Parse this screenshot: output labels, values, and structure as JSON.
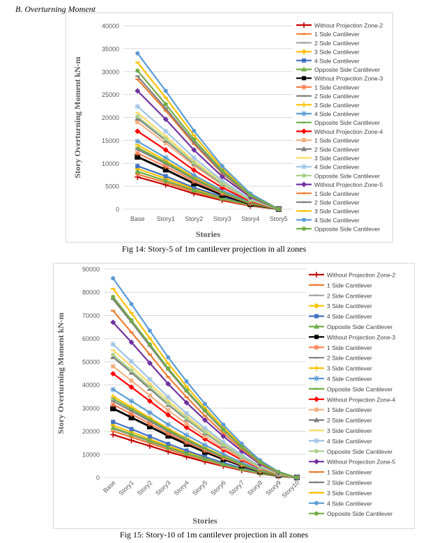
{
  "section_heading": "B.    Overturning Moment",
  "captions": [
    "Fig 14: Story-5 of 1m cantilever projection in all zones",
    "Fig 15: Story-10 of 1m cantilever projection in all zones"
  ],
  "legend_colors": [
    "#c00000",
    "#ed7d31",
    "#a5a5a5",
    "#ffc000",
    "#4472c4",
    "#70ad47",
    "#000000",
    "#ff7f50",
    "#808080",
    "#ffc000",
    "#5b9bd5",
    "#70ad47",
    "#ff0000",
    "#f4b183",
    "#7f7f7f",
    "#ffd966",
    "#9dc3e6",
    "#a9d18e",
    "#7030a0",
    "#ed7d31",
    "#7f7f7f",
    "#ffc000",
    "#5b9bd5",
    "#70ad47"
  ],
  "legend_markers": [
    "plus",
    "dash",
    "dash",
    "diamond",
    "square",
    "triangle",
    "square",
    "star",
    "dash",
    "plus",
    "star",
    "dash",
    "diamond",
    "square",
    "triangle",
    "dash",
    "star",
    "circle",
    "diamond",
    "dash",
    "dash",
    "dash",
    "circle",
    "circle"
  ],
  "chart_data": [
    {
      "type": "line",
      "xlabel": "Stories",
      "ylabel": "Story Overturning Moment kN-m",
      "ylim": [
        0,
        40000
      ],
      "yticks": [
        0,
        5000,
        10000,
        15000,
        20000,
        25000,
        30000,
        35000,
        40000
      ],
      "grid": true,
      "legend": "right",
      "categories": [
        "Base",
        "Story1",
        "Story2",
        "Story3",
        "Story4",
        "Story5"
      ],
      "series": [
        {
          "name": "Without Projection Zone-2",
          "values": [
            7000,
            5300,
            3400,
            1900,
            700,
            0
          ]
        },
        {
          "name": "1 Side Cantilever",
          "values": [
            7600,
            5800,
            3800,
            2100,
            800,
            0
          ]
        },
        {
          "name": "2 Side Cantilever",
          "values": [
            8200,
            6200,
            4100,
            2300,
            900,
            0
          ]
        },
        {
          "name": "3 Side Cantilever",
          "values": [
            8800,
            6700,
            4400,
            2500,
            1000,
            0
          ]
        },
        {
          "name": "4 Side Cantilever",
          "values": [
            9400,
            7200,
            4700,
            2700,
            1100,
            0
          ]
        },
        {
          "name": "Opposite Side Cantilever",
          "values": [
            8200,
            6200,
            4100,
            2300,
            900,
            0
          ]
        },
        {
          "name": "Without Projection Zone-3",
          "values": [
            11400,
            8600,
            5600,
            3100,
            1100,
            0
          ]
        },
        {
          "name": "1 Side Cantilever",
          "values": [
            12200,
            9300,
            6100,
            3400,
            1200,
            0
          ]
        },
        {
          "name": "2 Side Cantilever",
          "values": [
            13000,
            9900,
            6500,
            3600,
            1300,
            0
          ]
        },
        {
          "name": "3 Side Cantilever",
          "values": [
            14000,
            10600,
            7000,
            3900,
            1400,
            0
          ]
        },
        {
          "name": "4 Side Cantilever",
          "values": [
            14800,
            11200,
            7400,
            4100,
            1500,
            0
          ]
        },
        {
          "name": "Opposite Side Cantilever",
          "values": [
            13400,
            10200,
            6700,
            3700,
            1300,
            0
          ]
        },
        {
          "name": "Without Projection Zone-4",
          "values": [
            17000,
            12900,
            8500,
            4700,
            1700,
            0
          ]
        },
        {
          "name": "1 Side Cantilever",
          "values": [
            19000,
            14400,
            9500,
            5300,
            1900,
            0
          ]
        },
        {
          "name": "2 Side Cantilever",
          "values": [
            19800,
            15000,
            9900,
            5500,
            2000,
            0
          ]
        },
        {
          "name": "3 Side Cantilever",
          "values": [
            21000,
            15900,
            10500,
            5800,
            2100,
            0
          ]
        },
        {
          "name": "4 Side Cantilever",
          "values": [
            22400,
            17000,
            11200,
            6200,
            2200,
            0
          ]
        },
        {
          "name": "Opposite Side Cantilever",
          "values": [
            20200,
            15300,
            10100,
            5600,
            2000,
            0
          ]
        },
        {
          "name": "Without Projection Zone-5",
          "values": [
            25800,
            19600,
            12900,
            7100,
            2600,
            0
          ]
        },
        {
          "name": "1 Side Cantilever",
          "values": [
            28300,
            21500,
            14200,
            7800,
            2800,
            0
          ]
        },
        {
          "name": "2 Side Cantilever",
          "values": [
            29000,
            22000,
            14600,
            8000,
            2900,
            0
          ]
        },
        {
          "name": "3 Side Cantilever",
          "values": [
            32000,
            24300,
            16100,
            8900,
            3200,
            0
          ]
        },
        {
          "name": "4 Side Cantilever",
          "values": [
            34000,
            25800,
            17100,
            9400,
            3400,
            0
          ]
        },
        {
          "name": "Opposite Side Cantilever",
          "values": [
            30200,
            22900,
            15200,
            8400,
            3000,
            0
          ]
        }
      ]
    },
    {
      "type": "line",
      "xlabel": "Stories",
      "ylabel": "Story Overturning Moment kN-m",
      "ylim": [
        0,
        90000
      ],
      "yticks": [
        0,
        10000,
        20000,
        30000,
        40000,
        50000,
        60000,
        70000,
        80000,
        90000
      ],
      "grid": true,
      "legend": "right",
      "categories": [
        "Base",
        "Story1",
        "Story2",
        "Story3",
        "Story4",
        "Story5",
        "Story6",
        "Story7",
        "Story8",
        "Story9",
        "Story10"
      ],
      "series": [
        {
          "name": "Without Projection Zone-2",
          "values": [
            18500,
            16000,
            13600,
            11100,
            8900,
            6800,
            4900,
            3100,
            1600,
            500,
            0
          ]
        },
        {
          "name": "1 Side Cantilever",
          "values": [
            20000,
            17400,
            14800,
            12100,
            9700,
            7400,
            5300,
            3400,
            1700,
            600,
            0
          ]
        },
        {
          "name": "2 Side Cantilever",
          "values": [
            21000,
            18300,
            15500,
            12700,
            10200,
            7800,
            5600,
            3600,
            1800,
            600,
            0
          ]
        },
        {
          "name": "3 Side Cantilever",
          "values": [
            22500,
            19600,
            16600,
            13600,
            10900,
            8300,
            6000,
            3800,
            1900,
            700,
            0
          ]
        },
        {
          "name": "4 Side Cantilever",
          "values": [
            24000,
            20900,
            17700,
            14500,
            11600,
            8900,
            6400,
            4100,
            2100,
            700,
            0
          ]
        },
        {
          "name": "Opposite Side Cantilever",
          "values": [
            21500,
            18700,
            15900,
            13000,
            10400,
            8000,
            5700,
            3700,
            1900,
            600,
            0
          ]
        },
        {
          "name": "Without Projection Zone-3",
          "values": [
            29800,
            25900,
            22000,
            18000,
            14400,
            11000,
            7900,
            5100,
            2600,
            900,
            0
          ]
        },
        {
          "name": "1 Side Cantilever",
          "values": [
            31500,
            27400,
            23200,
            19000,
            15200,
            11700,
            8400,
            5400,
            2700,
            900,
            0
          ]
        },
        {
          "name": "2 Side Cantilever",
          "values": [
            33000,
            28700,
            24300,
            19900,
            15900,
            12200,
            8800,
            5600,
            2800,
            1000,
            0
          ]
        },
        {
          "name": "3 Side Cantilever",
          "values": [
            35000,
            30400,
            25800,
            21100,
            16900,
            12900,
            9300,
            6000,
            3000,
            1000,
            0
          ]
        },
        {
          "name": "4 Side Cantilever",
          "values": [
            38000,
            33000,
            28000,
            22900,
            18300,
            14000,
            10100,
            6500,
            3300,
            1100,
            0
          ]
        },
        {
          "name": "Opposite Side Cantilever",
          "values": [
            34000,
            29600,
            25100,
            20500,
            16400,
            12600,
            9000,
            5800,
            2900,
            1000,
            0
          ]
        },
        {
          "name": "Without Projection Zone-4",
          "values": [
            44800,
            39000,
            33000,
            27000,
            21600,
            16600,
            11900,
            7600,
            3900,
            1300,
            0
          ]
        },
        {
          "name": "1 Side Cantilever",
          "values": [
            48000,
            41800,
            35400,
            29000,
            23200,
            17800,
            12800,
            8200,
            4100,
            1400,
            0
          ]
        },
        {
          "name": "2 Side Cantilever",
          "values": [
            52000,
            45300,
            38300,
            31400,
            25100,
            19200,
            13800,
            8900,
            4500,
            1500,
            0
          ]
        },
        {
          "name": "3 Side Cantilever",
          "values": [
            55000,
            47900,
            40500,
            33200,
            26500,
            20300,
            14600,
            9400,
            4700,
            1600,
            0
          ]
        },
        {
          "name": "4 Side Cantilever",
          "values": [
            57500,
            50100,
            42400,
            34700,
            27700,
            21300,
            15300,
            9800,
            4900,
            1700,
            0
          ]
        },
        {
          "name": "Opposite Side Cantilever",
          "values": [
            53000,
            46200,
            39100,
            32000,
            25600,
            19600,
            14100,
            9000,
            4600,
            1500,
            0
          ]
        },
        {
          "name": "Without Projection Zone-5",
          "values": [
            67000,
            58400,
            49400,
            40400,
            32300,
            24800,
            17800,
            11400,
            5800,
            2000,
            0
          ]
        },
        {
          "name": "1 Side Cantilever",
          "values": [
            72000,
            62700,
            53100,
            43400,
            34700,
            26600,
            19100,
            12300,
            6200,
            2100,
            0
          ]
        },
        {
          "name": "2 Side Cantilever",
          "values": [
            77000,
            67100,
            56800,
            46500,
            37100,
            28500,
            20400,
            13100,
            6600,
            2300,
            0
          ]
        },
        {
          "name": "3 Side Cantilever",
          "values": [
            81500,
            71000,
            60100,
            49200,
            39300,
            30100,
            21600,
            13900,
            7000,
            2400,
            0
          ]
        },
        {
          "name": "4 Side Cantilever",
          "values": [
            86000,
            74900,
            63400,
            51900,
            41500,
            31800,
            22800,
            14600,
            7400,
            2500,
            0
          ]
        },
        {
          "name": "Opposite Side Cantilever",
          "values": [
            78000,
            67900,
            57500,
            47100,
            37600,
            28900,
            20700,
            13300,
            6700,
            2300,
            0
          ]
        }
      ]
    }
  ]
}
